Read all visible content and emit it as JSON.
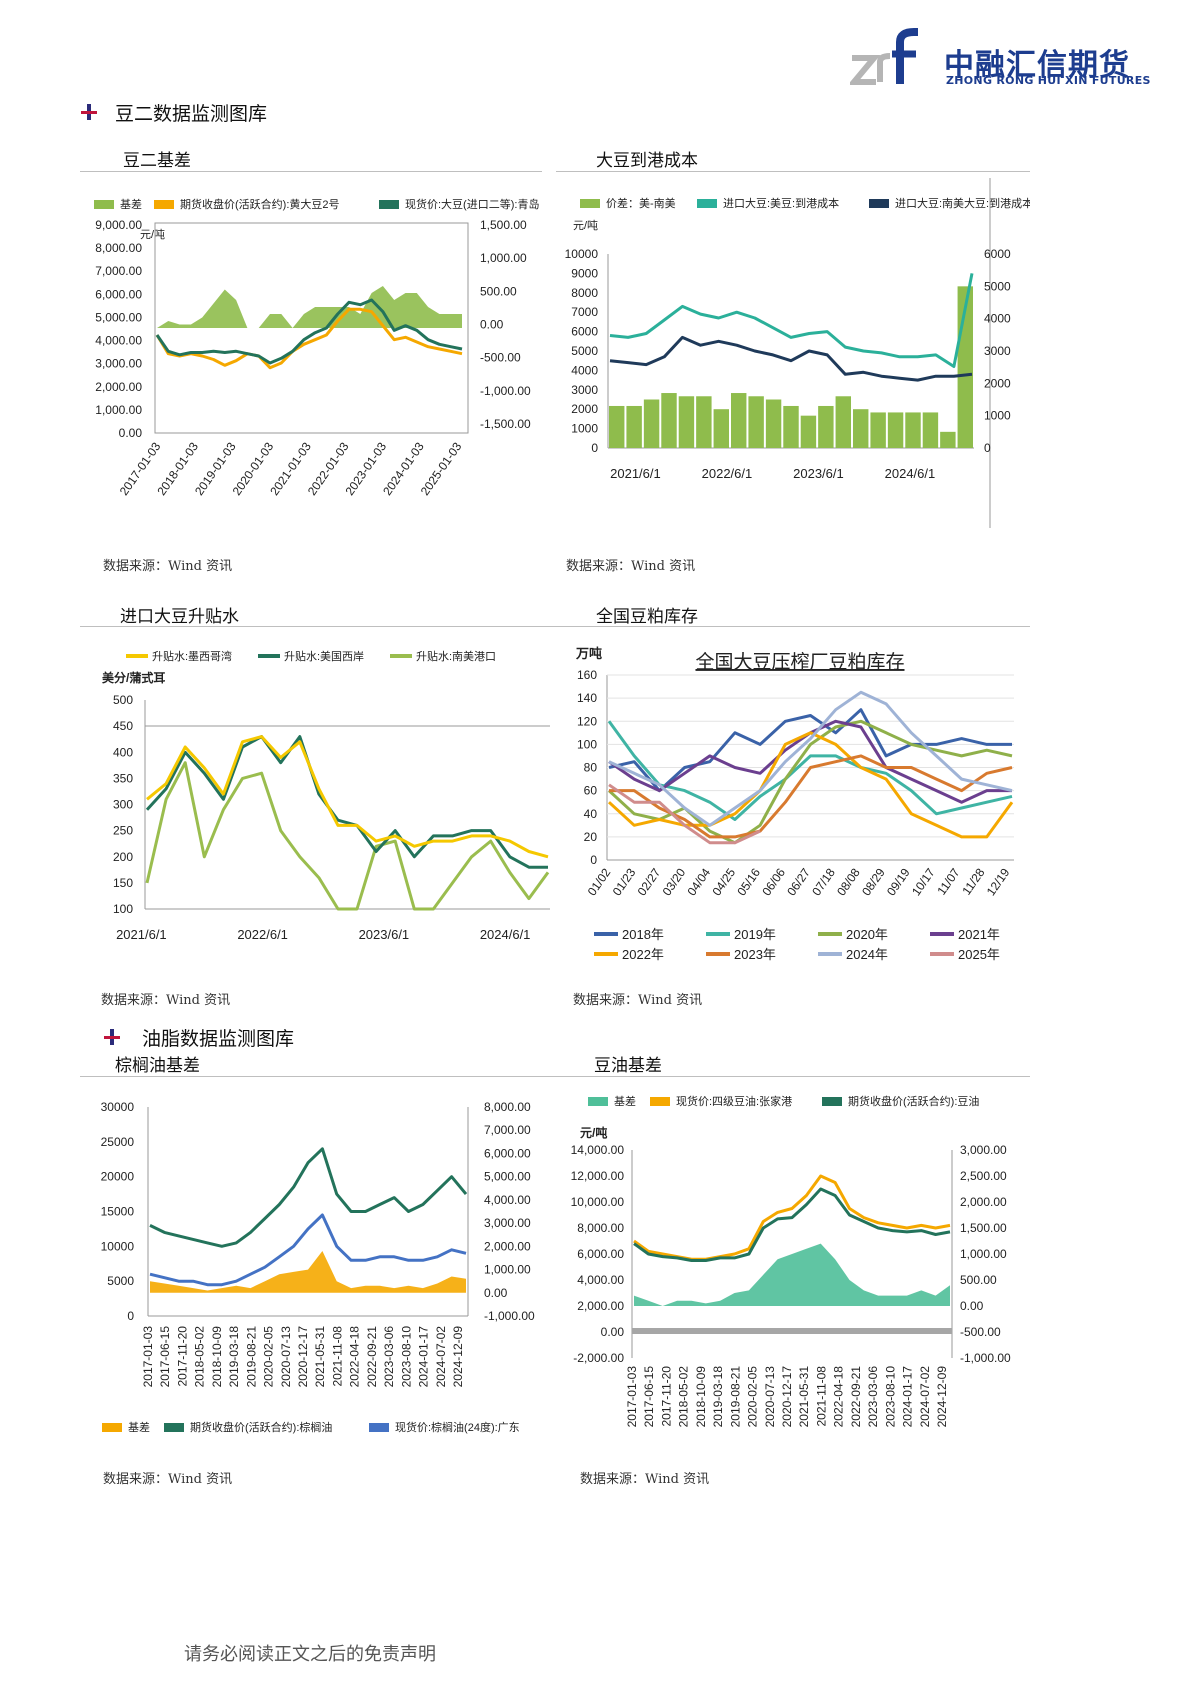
{
  "header": {
    "logo_mark": "zrf",
    "company_cn": "中融汇信期货",
    "company_en": "ZHONG RONG HUI XIN FUTURES",
    "brand_color": "#1d3d8f"
  },
  "sections": {
    "soy2": {
      "title": "豆二数据监测图库",
      "icon": "cross-bullet-icon"
    },
    "oils": {
      "title": "油脂数据监测图库",
      "icon": "cross-bullet-icon"
    }
  },
  "panels": {
    "p1": {
      "title": "豆二基差",
      "source": "数据来源：Wind 资讯"
    },
    "p2": {
      "title": "大豆到港成本",
      "source": "数据来源：Wind 资讯"
    },
    "p3": {
      "title": "进口大豆升贴水",
      "source": "数据来源：Wind 资讯"
    },
    "p4": {
      "title": "全国豆粕库存",
      "source": "数据来源：Wind 资讯"
    },
    "p5": {
      "title": "棕榈油基差",
      "source": "数据来源：Wind 资讯"
    },
    "p6": {
      "title": "豆油基差",
      "source": "数据来源：Wind 资讯"
    }
  },
  "footer": {
    "text": "请务必阅读正文之后的免责声明"
  },
  "chart_data": [
    {
      "id": "c1",
      "type": "area",
      "legend": [
        "基差",
        "期货收盘价(活跃合约):黄大豆2号",
        "现货价:大豆(进口二等):青岛"
      ],
      "colors": [
        "#8fbc4c",
        "#f5a800",
        "#23735b"
      ],
      "unit_left": "元/吨",
      "left_ticks": [
        "9,000.00",
        "8,000.00",
        "7,000.00",
        "6,000.00",
        "5,000.00",
        "4,000.00",
        "3,000.00",
        "2,000.00",
        "1,000.00",
        "0.00"
      ],
      "right_ticks": [
        "1,500.00",
        "1,000.00",
        "500.00",
        "0.00",
        "-500.00",
        "-1,000.00",
        "-1,500.00"
      ],
      "x_ticks": [
        "2017-01-03",
        "2018-01-03",
        "2019-01-03",
        "2020-01-03",
        "2021-01-03",
        "2022-01-03",
        "2023-01-03",
        "2024-01-03",
        "2025-01-03"
      ],
      "ylim_left": [
        0,
        9000
      ],
      "ylim_right": [
        -1500,
        1500
      ],
      "series": [
        {
          "name": "现货价:大豆(进口二等):青岛",
          "axis": "left",
          "values": [
            4200,
            3500,
            3350,
            3450,
            3450,
            3500,
            3450,
            3500,
            3400,
            3300,
            3000,
            3200,
            3500,
            4000,
            4300,
            4500,
            5100,
            5600,
            5500,
            5700,
            5200,
            4400,
            4600,
            4400,
            4000,
            3800,
            3700,
            3600
          ]
        },
        {
          "name": "期货收盘价(活跃合约):黄大豆2号",
          "axis": "left",
          "values": [
            4200,
            3400,
            3300,
            3400,
            3300,
            3150,
            2900,
            3100,
            3400,
            3300,
            2800,
            3000,
            3500,
            3800,
            4000,
            4200,
            4800,
            5300,
            5300,
            5200,
            4600,
            4000,
            4100,
            3900,
            3700,
            3600,
            3500,
            3400
          ]
        },
        {
          "name": "基差",
          "axis": "right",
          "values": [
            0,
            100,
            50,
            50,
            150,
            350,
            550,
            400,
            0,
            0,
            200,
            200,
            0,
            200,
            300,
            300,
            300,
            300,
            200,
            500,
            600,
            400,
            500,
            500,
            300,
            200,
            200,
            200
          ]
        }
      ]
    },
    {
      "id": "c2",
      "type": "bar",
      "legend": [
        "价差：美-南美",
        "进口大豆:美豆:到港成本",
        "进口大豆:南美大豆:到港成本"
      ],
      "colors": [
        "#8fbc4c",
        "#2bb09a",
        "#1f3a5a"
      ],
      "unit_left": "元/吨",
      "left_ticks": [
        "10000",
        "9000",
        "8000",
        "7000",
        "6000",
        "5000",
        "4000",
        "3000",
        "2000",
        "1000",
        "0"
      ],
      "right_ticks": [
        "6000",
        "5000",
        "4000",
        "3000",
        "2000",
        "1000",
        "0"
      ],
      "x_ticks": [
        "2021/6/1",
        "2022/6/1",
        "2023/6/1",
        "2024/6/1"
      ],
      "ylim_left": [
        0,
        10000
      ],
      "ylim_right": [
        0,
        6000
      ],
      "series": [
        {
          "name": "进口大豆:美豆:到港成本",
          "axis": "left",
          "values": [
            5800,
            5700,
            5900,
            6600,
            7300,
            6900,
            6700,
            7000,
            6700,
            6200,
            5700,
            5900,
            6000,
            5200,
            5000,
            4900,
            4700,
            4700,
            4800,
            4200,
            9000
          ]
        },
        {
          "name": "进口大豆:南美大豆:到港成本",
          "axis": "left",
          "values": [
            4500,
            4400,
            4300,
            4700,
            5700,
            5300,
            5500,
            5300,
            5000,
            4800,
            4500,
            5000,
            4800,
            3800,
            3900,
            3700,
            3600,
            3500,
            3700,
            3700,
            3800
          ]
        },
        {
          "name": "价差：美-南美",
          "axis": "right",
          "values": [
            1300,
            1300,
            1500,
            1700,
            1600,
            1600,
            1200,
            1700,
            1600,
            1500,
            1300,
            1000,
            1300,
            1600,
            1200,
            1100,
            1100,
            1100,
            1100,
            500,
            5000
          ]
        }
      ]
    },
    {
      "id": "c3",
      "type": "line",
      "legend": [
        "升贴水:墨西哥湾",
        "升贴水:美国西岸",
        "升贴水:南美港口"
      ],
      "colors": [
        "#f5c800",
        "#23735b",
        "#9abd4e"
      ],
      "unit_left": "美分/蒲式耳",
      "left_ticks": [
        "500",
        "450",
        "400",
        "350",
        "300",
        "250",
        "200",
        "150",
        "100"
      ],
      "x_ticks": [
        "2021/6/1",
        "2022/6/1",
        "2023/6/1",
        "2024/6/1"
      ],
      "ylim": [
        100,
        500
      ],
      "series": [
        {
          "name": "升贴水:墨西哥湾",
          "values": [
            310,
            340,
            410,
            370,
            320,
            420,
            430,
            390,
            420,
            330,
            260,
            260,
            230,
            240,
            220,
            230,
            230,
            240,
            240,
            230,
            210,
            200
          ]
        },
        {
          "name": "升贴水:美国西岸",
          "values": [
            290,
            330,
            400,
            360,
            310,
            410,
            430,
            380,
            430,
            320,
            270,
            260,
            210,
            250,
            200,
            240,
            240,
            250,
            250,
            200,
            180,
            180
          ]
        },
        {
          "name": "升贴水:南美港口",
          "values": [
            150,
            310,
            380,
            200,
            290,
            350,
            360,
            250,
            200,
            160,
            100,
            100,
            220,
            230,
            100,
            100,
            150,
            200,
            230,
            170,
            120,
            170
          ]
        }
      ]
    },
    {
      "id": "c4",
      "type": "line",
      "title": "全国大豆压榨厂豆粕库存",
      "unit_left": "万吨",
      "left_ticks": [
        "160",
        "140",
        "120",
        "100",
        "80",
        "60",
        "40",
        "20",
        "0"
      ],
      "x_ticks": [
        "01/02",
        "01/23",
        "02/27",
        "03/20",
        "04/04",
        "04/25",
        "05/16",
        "06/06",
        "06/27",
        "07/18",
        "08/08",
        "08/29",
        "09/19",
        "10/17",
        "11/07",
        "11/28",
        "12/19"
      ],
      "ylim": [
        0,
        160
      ],
      "legend": [
        "2018年",
        "2019年",
        "2020年",
        "2021年",
        "2022年",
        "2023年",
        "2024年",
        "2025年"
      ],
      "colors": [
        "#3a62a8",
        "#3fb4a4",
        "#8fb04a",
        "#6b3f8f",
        "#f5a800",
        "#d87a2f",
        "#9fb3d6",
        "#d08c8c"
      ],
      "series": [
        {
          "name": "2018年",
          "values": [
            80,
            85,
            60,
            80,
            85,
            110,
            100,
            120,
            125,
            110,
            130,
            90,
            100,
            100,
            105,
            100,
            100
          ]
        },
        {
          "name": "2019年",
          "values": [
            120,
            90,
            65,
            60,
            50,
            35,
            55,
            70,
            90,
            90,
            80,
            75,
            60,
            40,
            45,
            50,
            55
          ]
        },
        {
          "name": "2020年",
          "values": [
            60,
            40,
            35,
            45,
            25,
            15,
            30,
            70,
            100,
            115,
            120,
            110,
            100,
            95,
            90,
            95,
            90
          ]
        },
        {
          "name": "2021年",
          "values": [
            85,
            70,
            60,
            75,
            90,
            80,
            75,
            95,
            110,
            120,
            115,
            80,
            70,
            60,
            50,
            60,
            60
          ]
        },
        {
          "name": "2022年",
          "values": [
            50,
            30,
            35,
            30,
            30,
            40,
            60,
            100,
            110,
            100,
            80,
            70,
            40,
            30,
            20,
            20,
            50
          ]
        },
        {
          "name": "2023年",
          "values": [
            60,
            60,
            45,
            35,
            20,
            20,
            25,
            50,
            80,
            85,
            90,
            80,
            80,
            70,
            60,
            75,
            80
          ]
        },
        {
          "name": "2024年",
          "values": [
            85,
            75,
            65,
            45,
            30,
            45,
            60,
            85,
            105,
            130,
            145,
            135,
            110,
            90,
            70,
            65,
            60
          ]
        },
        {
          "name": "2025年",
          "values": [
            65,
            50,
            50,
            30,
            15,
            15,
            25
          ]
        }
      ]
    },
    {
      "id": "c5",
      "type": "area",
      "legend": [
        "基差",
        "期货收盘价(活跃合约):棕榈油",
        "现货价:棕榈油(24度):广东"
      ],
      "colors": [
        "#f5a800",
        "#23735b",
        "#4472c4"
      ],
      "left_ticks": [
        "30000",
        "25000",
        "20000",
        "15000",
        "10000",
        "5000",
        "0"
      ],
      "right_ticks": [
        "8,000.00",
        "7,000.00",
        "6,000.00",
        "5,000.00",
        "4,000.00",
        "3,000.00",
        "2,000.00",
        "1,000.00",
        "0.00",
        "-1,000.00"
      ],
      "x_ticks": [
        "2017-01-03",
        "2017-06-15",
        "2017-11-20",
        "2018-05-02",
        "2018-10-09",
        "2019-03-18",
        "2019-08-21",
        "2020-02-05",
        "2020-07-13",
        "2020-12-17",
        "2021-05-31",
        "2021-11-08",
        "2022-04-18",
        "2022-09-21",
        "2023-03-06",
        "2023-08-10",
        "2024-01-17",
        "2024-07-02",
        "2024-12-09"
      ],
      "ylim_left": [
        0,
        30000
      ],
      "ylim_right": [
        -1000,
        8000
      ],
      "series": [
        {
          "name": "期货收盘价(活跃合约):棕榈油",
          "axis": "left",
          "values": [
            13000,
            12000,
            11500,
            11000,
            10500,
            10000,
            10500,
            12000,
            14000,
            16000,
            18500,
            22000,
            24000,
            17500,
            15000,
            15000,
            16000,
            17000,
            15000,
            16000,
            18000,
            20000,
            17500
          ]
        },
        {
          "name": "现货价:棕榈油(24度):广东",
          "axis": "left",
          "values": [
            6000,
            5500,
            5000,
            5000,
            4500,
            4500,
            5000,
            6000,
            7000,
            8500,
            10000,
            12500,
            14500,
            10000,
            8000,
            8000,
            8500,
            8500,
            8000,
            8000,
            8500,
            9500,
            9000
          ]
        },
        {
          "name": "基差",
          "axis": "right",
          "values": [
            500,
            400,
            300,
            200,
            100,
            200,
            300,
            200,
            500,
            800,
            900,
            1000,
            1800,
            500,
            200,
            300,
            300,
            200,
            300,
            200,
            400,
            700,
            600
          ]
        }
      ]
    },
    {
      "id": "c6",
      "type": "area",
      "legend": [
        "基差",
        "现货价:四级豆油:张家港",
        "期货收盘价(活跃合约):豆油"
      ],
      "colors": [
        "#4fbf99",
        "#f5a800",
        "#23735b"
      ],
      "unit_left": "元/吨",
      "left_ticks": [
        "14,000.00",
        "12,000.00",
        "10,000.00",
        "8,000.00",
        "6,000.00",
        "4,000.00",
        "2,000.00",
        "0.00",
        "-2,000.00"
      ],
      "right_ticks": [
        "3,000.00",
        "2,500.00",
        "2,000.00",
        "1,500.00",
        "1,000.00",
        "500.00",
        "0.00",
        "-500.00",
        "-1,000.00"
      ],
      "x_ticks": [
        "2017-01-03",
        "2017-06-15",
        "2017-11-20",
        "2018-05-02",
        "2018-10-09",
        "2019-03-18",
        "2019-08-21",
        "2020-02-05",
        "2020-07-13",
        "2020-12-17",
        "2021-05-31",
        "2021-11-08",
        "2022-04-18",
        "2022-09-21",
        "2023-03-06",
        "2023-08-10",
        "2024-01-17",
        "2024-07-02",
        "2024-12-09"
      ],
      "ylim_left": [
        -2000,
        14000
      ],
      "ylim_right": [
        -1000,
        3000
      ],
      "series": [
        {
          "name": "现货价:四级豆油:张家港",
          "axis": "left",
          "values": [
            7000,
            6200,
            6000,
            5800,
            5600,
            5600,
            5800,
            6000,
            6400,
            8500,
            9200,
            9500,
            10500,
            12000,
            11500,
            9500,
            8800,
            8400,
            8200,
            8000,
            8200,
            8000,
            8200
          ]
        },
        {
          "name": "期货收盘价(活跃合约):豆油",
          "axis": "left",
          "values": [
            6800,
            6000,
            5800,
            5700,
            5500,
            5500,
            5700,
            5700,
            6000,
            8000,
            8700,
            8800,
            9800,
            11000,
            10500,
            9000,
            8500,
            8000,
            7800,
            7700,
            7800,
            7500,
            7700
          ]
        },
        {
          "name": "基差",
          "axis": "right",
          "values": [
            200,
            100,
            0,
            100,
            100,
            50,
            100,
            250,
            300,
            600,
            900,
            1000,
            1100,
            1200,
            900,
            500,
            300,
            200,
            200,
            200,
            300,
            200,
            400
          ]
        }
      ]
    }
  ]
}
